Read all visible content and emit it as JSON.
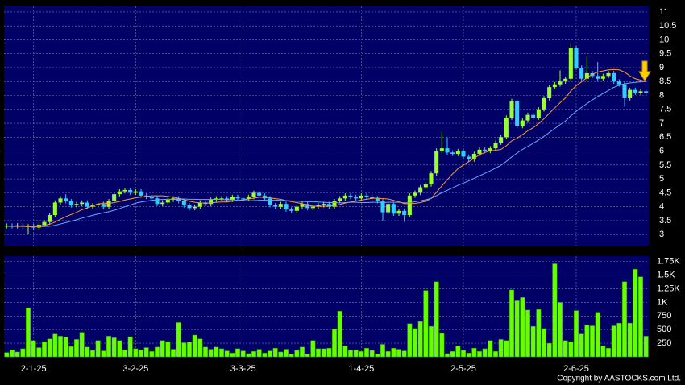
{
  "chart_data": {
    "type": "candlestick",
    "categories": [
      null,
      null,
      null,
      null,
      null,
      "2-1-25",
      null,
      null,
      null,
      null,
      null,
      null,
      null,
      null,
      null,
      null,
      null,
      null,
      null,
      null,
      null,
      null,
      null,
      null,
      "3-2-25",
      null,
      null,
      null,
      null,
      null,
      null,
      null,
      null,
      null,
      null,
      null,
      null,
      null,
      null,
      null,
      null,
      null,
      null,
      null,
      "3-3-25",
      null,
      null,
      null,
      null,
      null,
      null,
      null,
      null,
      null,
      null,
      null,
      null,
      null,
      null,
      null,
      null,
      null,
      null,
      null,
      null,
      null,
      "1-4-25",
      null,
      null,
      null,
      null,
      null,
      null,
      null,
      null,
      null,
      null,
      null,
      null,
      null,
      null,
      null,
      null,
      null,
      null,
      "2-5-25",
      null,
      null,
      null,
      null,
      null,
      null,
      null,
      null,
      null,
      null,
      null,
      null,
      null,
      null,
      null,
      null,
      null,
      null,
      null,
      null,
      "2-6-25",
      null,
      null,
      null,
      null,
      null,
      null,
      null,
      null,
      null,
      null,
      null,
      null,
      null
    ],
    "open": [
      3.3,
      3.32,
      3.3,
      3.33,
      3.28,
      3.3,
      3.25,
      3.35,
      3.45,
      3.7,
      4.15,
      4.3,
      4.2,
      4.05,
      4.1,
      4.15,
      4.0,
      4.05,
      4.1,
      4.0,
      4.2,
      4.45,
      4.55,
      4.6,
      4.5,
      4.55,
      4.4,
      4.35,
      4.3,
      4.1,
      4.15,
      4.25,
      4.3,
      4.2,
      4.05,
      3.95,
      4.0,
      4.15,
      4.1,
      4.25,
      4.3,
      4.3,
      4.25,
      4.35,
      4.3,
      4.28,
      4.35,
      4.5,
      4.4,
      4.3,
      4.05,
      4.0,
      4.1,
      3.9,
      3.85,
      4.0,
      4.1,
      3.95,
      4.0,
      4.05,
      4.1,
      4.0,
      4.2,
      4.3,
      4.4,
      4.35,
      4.3,
      4.4,
      4.35,
      4.3,
      4.2,
      3.8,
      4.1,
      3.75,
      3.85,
      3.7,
      4.4,
      4.5,
      4.7,
      4.8,
      5.2,
      6.0,
      6.1,
      5.95,
      5.9,
      6.0,
      5.8,
      5.7,
      5.9,
      6.05,
      6.0,
      6.1,
      6.3,
      6.5,
      7.2,
      7.8,
      6.9,
      7.1,
      7.3,
      7.2,
      7.5,
      7.9,
      8.3,
      8.4,
      8.5,
      8.6,
      9.7,
      9.0,
      8.6,
      8.8,
      8.7,
      8.6,
      8.7,
      8.8,
      8.5,
      8.4,
      7.9,
      8.2,
      8.1,
      8.15
    ],
    "high": [
      3.4,
      3.4,
      3.41,
      3.41,
      3.38,
      3.38,
      3.43,
      3.53,
      3.78,
      4.23,
      4.38,
      4.45,
      4.28,
      4.18,
      4.23,
      4.23,
      4.13,
      4.18,
      4.18,
      4.28,
      4.53,
      4.63,
      4.68,
      4.68,
      4.63,
      4.63,
      4.48,
      4.43,
      4.38,
      4.23,
      4.33,
      4.38,
      4.38,
      4.28,
      4.13,
      4.08,
      4.23,
      4.23,
      4.33,
      4.38,
      4.38,
      4.38,
      4.43,
      4.43,
      4.38,
      4.43,
      4.58,
      4.58,
      4.48,
      4.38,
      4.13,
      4.18,
      4.18,
      3.98,
      4.08,
      4.18,
      4.18,
      4.08,
      4.13,
      4.18,
      4.18,
      4.28,
      4.38,
      4.48,
      4.48,
      4.43,
      4.48,
      4.48,
      4.43,
      4.38,
      4.28,
      4.18,
      4.18,
      3.93,
      3.93,
      4.48,
      4.58,
      4.78,
      4.88,
      5.28,
      6.1,
      6.7,
      6.5,
      6.03,
      6.08,
      6.08,
      5.88,
      5.98,
      6.13,
      6.13,
      6.18,
      6.38,
      6.58,
      7.28,
      7.88,
      7.88,
      7.18,
      7.38,
      7.38,
      7.58,
      7.98,
      8.38,
      8.48,
      8.9,
      8.68,
      9.85,
      9.78,
      9.08,
      9.4,
      8.88,
      9.2,
      8.78,
      8.88,
      8.88,
      8.58,
      8.48,
      8.28,
      8.28,
      8.23,
      8.23
    ],
    "low": [
      3.22,
      3.22,
      3.22,
      3.2,
      3.0,
      3.17,
      3.17,
      3.27,
      3.37,
      3.62,
      4.07,
      4.12,
      3.97,
      3.97,
      4.02,
      3.92,
      3.92,
      3.97,
      3.92,
      3.92,
      4.12,
      4.37,
      4.47,
      4.42,
      4.42,
      4.32,
      4.27,
      4.22,
      4.02,
      4.02,
      4.07,
      4.17,
      4.12,
      3.97,
      3.87,
      3.87,
      3.92,
      4.02,
      4.02,
      4.17,
      4.22,
      4.17,
      4.17,
      4.22,
      4.2,
      4.2,
      4.27,
      4.32,
      4.22,
      3.97,
      3.92,
      3.92,
      3.82,
      3.77,
      3.77,
      3.92,
      3.87,
      3.87,
      3.92,
      3.97,
      3.92,
      3.92,
      4.12,
      4.22,
      4.27,
      4.22,
      4.22,
      4.27,
      4.22,
      4.12,
      3.5,
      3.72,
      3.67,
      3.67,
      3.45,
      3.62,
      4.32,
      4.42,
      4.62,
      4.72,
      5.12,
      5.92,
      5.87,
      5.82,
      5.82,
      5.72,
      5.62,
      5.62,
      5.82,
      5.92,
      5.92,
      6.02,
      6.22,
      6.42,
      7.12,
      6.82,
      6.82,
      7.02,
      7.12,
      7.12,
      7.42,
      7.82,
      8.22,
      8.32,
      8.42,
      8.52,
      8.92,
      8.52,
      8.52,
      8.62,
      8.52,
      8.52,
      8.62,
      8.42,
      8.32,
      7.6,
      7.82,
      8.02,
      8.02,
      8.02
    ],
    "close": [
      3.32,
      3.3,
      3.33,
      3.28,
      3.3,
      3.25,
      3.35,
      3.45,
      3.7,
      4.15,
      4.3,
      4.2,
      4.05,
      4.1,
      4.15,
      4.0,
      4.05,
      4.1,
      4.0,
      4.2,
      4.45,
      4.55,
      4.6,
      4.5,
      4.55,
      4.4,
      4.35,
      4.3,
      4.1,
      4.15,
      4.25,
      4.3,
      4.2,
      4.05,
      3.95,
      4.0,
      4.15,
      4.1,
      4.25,
      4.3,
      4.3,
      4.25,
      4.35,
      4.3,
      4.28,
      4.35,
      4.5,
      4.4,
      4.3,
      4.05,
      4.0,
      4.1,
      3.9,
      3.85,
      4.0,
      4.1,
      3.95,
      4.0,
      4.05,
      4.1,
      4.0,
      4.2,
      4.3,
      4.4,
      4.35,
      4.3,
      4.4,
      4.35,
      4.3,
      4.2,
      3.8,
      4.1,
      3.75,
      3.85,
      3.7,
      4.4,
      4.5,
      4.7,
      4.8,
      5.2,
      6.0,
      6.1,
      5.95,
      5.9,
      6.0,
      5.8,
      5.7,
      5.9,
      6.05,
      6.0,
      6.1,
      6.3,
      6.5,
      7.2,
      7.8,
      6.9,
      7.1,
      7.3,
      7.2,
      7.5,
      7.9,
      8.3,
      8.4,
      8.5,
      8.6,
      9.7,
      9.0,
      8.6,
      8.8,
      8.7,
      8.6,
      8.7,
      8.8,
      8.5,
      8.4,
      7.9,
      8.2,
      8.1,
      8.15,
      8.1
    ],
    "up_color": "#99ff33",
    "down_color": "#33ccff",
    "series": [
      {
        "color": "#ff9933",
        "values": [
          3.3,
          3.3,
          3.31,
          3.31,
          3.31,
          3.3,
          3.31,
          3.33,
          3.37,
          3.45,
          3.55,
          3.64,
          3.72,
          3.8,
          3.89,
          3.96,
          4.03,
          4.1,
          4.13,
          4.12,
          4.15,
          4.19,
          4.24,
          4.28,
          4.32,
          4.35,
          4.37,
          4.39,
          4.39,
          4.39,
          4.37,
          4.34,
          4.3,
          4.25,
          4.2,
          4.16,
          4.14,
          4.13,
          4.14,
          4.16,
          4.17,
          4.17,
          4.2,
          4.22,
          4.25,
          4.28,
          4.31,
          4.34,
          4.34,
          4.32,
          4.29,
          4.27,
          4.22,
          4.18,
          4.15,
          4.11,
          4.06,
          4.02,
          4.02,
          4.02,
          4.02,
          4.04,
          4.08,
          4.13,
          4.17,
          4.2,
          4.24,
          4.27,
          4.3,
          4.31,
          4.29,
          4.28,
          4.23,
          4.18,
          4.11,
          4.11,
          4.12,
          4.15,
          4.2,
          4.3,
          4.52,
          4.75,
          4.97,
          5.18,
          5.37,
          5.5,
          5.62,
          5.74,
          5.87,
          5.95,
          6.01,
          6.03,
          6.06,
          6.19,
          6.37,
          6.46,
          6.59,
          6.73,
          6.84,
          6.99,
          7.16,
          7.36,
          7.55,
          7.74,
          7.91,
          8.16,
          8.35,
          8.49,
          8.64,
          8.76,
          8.84,
          8.88,
          8.92,
          8.93,
          8.92,
          8.84,
          8.7,
          8.6,
          8.55,
          8.5
        ]
      },
      {
        "color": "#66aaff",
        "values": [
          3.3,
          3.29,
          3.29,
          3.29,
          3.28,
          3.28,
          3.28,
          3.29,
          3.3,
          3.33,
          3.38,
          3.43,
          3.48,
          3.53,
          3.59,
          3.64,
          3.69,
          3.74,
          3.78,
          3.82,
          3.87,
          3.93,
          4.0,
          4.06,
          4.13,
          4.17,
          4.2,
          4.23,
          4.25,
          4.26,
          4.27,
          4.27,
          4.28,
          4.28,
          4.27,
          4.27,
          4.26,
          4.26,
          4.26,
          4.27,
          4.26,
          4.25,
          4.25,
          4.23,
          4.22,
          4.22,
          4.22,
          4.23,
          4.24,
          4.24,
          4.24,
          4.23,
          4.22,
          4.21,
          4.2,
          4.19,
          4.18,
          4.18,
          4.17,
          4.16,
          4.15,
          4.15,
          4.14,
          4.15,
          4.16,
          4.16,
          4.15,
          4.15,
          4.16,
          4.16,
          4.15,
          4.16,
          4.16,
          4.16,
          4.14,
          4.15,
          4.18,
          4.21,
          4.25,
          4.3,
          4.4,
          4.5,
          4.59,
          4.68,
          4.77,
          4.85,
          4.93,
          5.02,
          5.11,
          5.2,
          5.29,
          5.39,
          5.49,
          5.63,
          5.79,
          5.93,
          6.06,
          6.17,
          6.28,
          6.4,
          6.53,
          6.67,
          6.81,
          6.95,
          7.08,
          7.27,
          7.43,
          7.57,
          7.71,
          7.84,
          7.96,
          8.07,
          8.18,
          8.29,
          8.37,
          8.42,
          8.45,
          8.47,
          8.49,
          8.5
        ]
      }
    ],
    "ylim": [
      2.6,
      11.2
    ],
    "yticks": [
      3,
      3.5,
      4,
      4.5,
      5,
      5.5,
      6,
      6.5,
      7,
      7.5,
      8,
      8.5,
      9,
      9.5,
      10,
      10.5,
      11
    ],
    "grid": true,
    "volume": {
      "color": "#66ff00",
      "values": [
        80,
        130,
        90,
        150,
        900,
        300,
        170,
        280,
        330,
        420,
        380,
        360,
        190,
        320,
        450,
        180,
        120,
        300,
        110,
        380,
        350,
        300,
        130,
        370,
        150,
        130,
        170,
        100,
        180,
        300,
        280,
        140,
        630,
        260,
        270,
        400,
        330,
        180,
        140,
        180,
        150,
        110,
        70,
        150,
        110,
        60,
        100,
        140,
        70,
        110,
        160,
        90,
        140,
        50,
        120,
        180,
        50,
        300,
        150,
        150,
        160,
        510,
        840,
        200,
        120,
        130,
        100,
        160,
        120,
        50,
        230,
        100,
        160,
        140,
        110,
        610,
        520,
        650,
        1220,
        560,
        1380,
        430,
        60,
        100,
        200,
        120,
        70,
        160,
        100,
        150,
        300,
        100,
        320,
        300,
        1230,
        1030,
        1090,
        860,
        560,
        870,
        520,
        250,
        1710,
        1000,
        300,
        280,
        850,
        420,
        580,
        570,
        820,
        200,
        160,
        570,
        620,
        1380,
        620,
        1610,
        1470,
        380
      ],
      "ylim": [
        0,
        1850
      ],
      "yticks": [
        250,
        500,
        750,
        {
          "value": 1000,
          "label": "1K"
        },
        {
          "value": 1250,
          "label": "1.25K"
        },
        {
          "value": 1500,
          "label": "1.5K"
        },
        {
          "value": 1750,
          "label": "1.75K"
        }
      ]
    },
    "source": "Copyright by AASTOCKS.com Ltd."
  }
}
